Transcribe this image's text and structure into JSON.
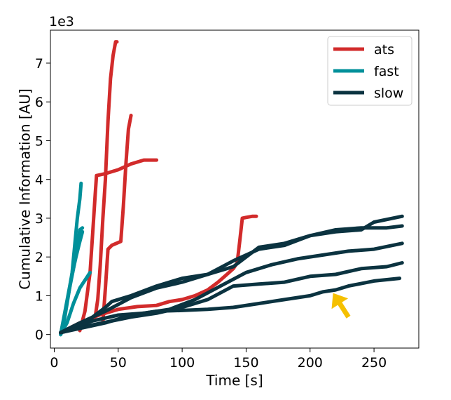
{
  "chart_data": {
    "type": "line",
    "xlabel": "Time [s]",
    "ylabel": "Cumulative Information [AU]",
    "y_multiplier": "1e3",
    "xlim": [
      -3,
      285
    ],
    "ylim": [
      -0.35,
      7.85
    ],
    "xticks": [
      0,
      50,
      100,
      150,
      200,
      250
    ],
    "yticks": [
      0,
      1,
      2,
      3,
      4,
      5,
      6,
      7
    ],
    "legend": {
      "placement": "top-right",
      "entries": [
        "ats",
        "fast",
        "slow"
      ]
    },
    "colors": {
      "ats": "#d22b2b",
      "fast": "#00909a",
      "slow": "#0b3340",
      "arrow": "#f5c000"
    },
    "series": [
      {
        "name": "ats",
        "group": "ats",
        "points": [
          [
            32,
            0.45
          ],
          [
            34,
            0.9
          ],
          [
            36,
            1.8
          ],
          [
            38,
            3.0
          ],
          [
            40,
            4.0
          ],
          [
            42,
            5.5
          ],
          [
            44,
            6.6
          ],
          [
            46,
            7.2
          ],
          [
            48,
            7.55
          ],
          [
            49,
            7.55
          ]
        ]
      },
      {
        "name": "ats",
        "group": "ats",
        "points": [
          [
            20,
            0.1
          ],
          [
            24,
            0.6
          ],
          [
            28,
            1.6
          ],
          [
            30,
            2.6
          ],
          [
            32,
            3.6
          ],
          [
            33,
            4.1
          ],
          [
            40,
            4.15
          ],
          [
            50,
            4.25
          ],
          [
            60,
            4.4
          ],
          [
            70,
            4.5
          ],
          [
            80,
            4.5
          ]
        ]
      },
      {
        "name": "ats",
        "group": "ats",
        "points": [
          [
            38,
            0.3
          ],
          [
            40,
            1.2
          ],
          [
            42,
            2.2
          ],
          [
            45,
            2.3
          ],
          [
            52,
            2.4
          ],
          [
            54,
            3.3
          ],
          [
            56,
            4.4
          ],
          [
            58,
            5.3
          ],
          [
            60,
            5.65
          ]
        ]
      },
      {
        "name": "ats",
        "group": "ats",
        "points": [
          [
            5,
            0.05
          ],
          [
            20,
            0.3
          ],
          [
            35,
            0.5
          ],
          [
            50,
            0.65
          ],
          [
            65,
            0.72
          ],
          [
            80,
            0.75
          ],
          [
            90,
            0.85
          ],
          [
            100,
            0.9
          ],
          [
            110,
            1.0
          ],
          [
            120,
            1.15
          ],
          [
            128,
            1.35
          ],
          [
            135,
            1.55
          ],
          [
            140,
            1.7
          ],
          [
            143,
            1.85
          ],
          [
            145,
            2.4
          ],
          [
            147,
            3.0
          ],
          [
            150,
            3.02
          ],
          [
            155,
            3.05
          ],
          [
            158,
            3.05
          ]
        ]
      },
      {
        "name": "fast",
        "group": "fast",
        "points": [
          [
            5,
            0.0
          ],
          [
            8,
            0.4
          ],
          [
            11,
            1.0
          ],
          [
            14,
            1.6
          ],
          [
            16,
            2.3
          ],
          [
            18,
            3.0
          ],
          [
            20,
            3.5
          ],
          [
            21,
            3.9
          ]
        ]
      },
      {
        "name": "fast",
        "group": "fast",
        "points": [
          [
            5,
            0.0
          ],
          [
            8,
            0.5
          ],
          [
            12,
            1.2
          ],
          [
            15,
            1.7
          ],
          [
            18,
            2.3
          ],
          [
            20,
            2.7
          ],
          [
            22,
            2.75
          ]
        ]
      },
      {
        "name": "fast",
        "group": "fast",
        "points": [
          [
            5,
            0.0
          ],
          [
            9,
            0.7
          ],
          [
            13,
            1.4
          ],
          [
            17,
            2.0
          ],
          [
            20,
            2.4
          ],
          [
            22,
            2.65
          ]
        ]
      },
      {
        "name": "fast",
        "group": "fast",
        "points": [
          [
            5,
            0.0
          ],
          [
            10,
            0.3
          ],
          [
            15,
            0.8
          ],
          [
            20,
            1.2
          ],
          [
            25,
            1.45
          ],
          [
            28,
            1.6
          ]
        ]
      },
      {
        "name": "slow",
        "group": "slow",
        "points": [
          [
            5,
            0.05
          ],
          [
            20,
            0.25
          ],
          [
            30,
            0.45
          ],
          [
            40,
            0.7
          ],
          [
            45,
            0.85
          ],
          [
            60,
            1.0
          ],
          [
            80,
            1.25
          ],
          [
            100,
            1.45
          ],
          [
            120,
            1.55
          ],
          [
            140,
            1.75
          ],
          [
            160,
            2.25
          ],
          [
            180,
            2.35
          ],
          [
            200,
            2.55
          ],
          [
            220,
            2.65
          ],
          [
            240,
            2.7
          ],
          [
            250,
            2.9
          ],
          [
            272,
            3.05
          ]
        ]
      },
      {
        "name": "slow",
        "group": "slow",
        "points": [
          [
            5,
            0.05
          ],
          [
            20,
            0.3
          ],
          [
            40,
            0.6
          ],
          [
            60,
            0.95
          ],
          [
            80,
            1.2
          ],
          [
            100,
            1.35
          ],
          [
            120,
            1.55
          ],
          [
            140,
            1.9
          ],
          [
            160,
            2.2
          ],
          [
            180,
            2.3
          ],
          [
            200,
            2.55
          ],
          [
            220,
            2.7
          ],
          [
            240,
            2.75
          ],
          [
            260,
            2.75
          ],
          [
            272,
            2.8
          ]
        ]
      },
      {
        "name": "slow",
        "group": "slow",
        "points": [
          [
            5,
            0.05
          ],
          [
            30,
            0.35
          ],
          [
            50,
            0.5
          ],
          [
            70,
            0.55
          ],
          [
            90,
            0.65
          ],
          [
            110,
            0.9
          ],
          [
            130,
            1.25
          ],
          [
            150,
            1.6
          ],
          [
            170,
            1.8
          ],
          [
            190,
            1.95
          ],
          [
            210,
            2.05
          ],
          [
            230,
            2.15
          ],
          [
            250,
            2.2
          ],
          [
            272,
            2.35
          ]
        ]
      },
      {
        "name": "slow",
        "group": "slow",
        "points": [
          [
            5,
            0.05
          ],
          [
            30,
            0.25
          ],
          [
            60,
            0.45
          ],
          [
            80,
            0.55
          ],
          [
            100,
            0.7
          ],
          [
            120,
            0.9
          ],
          [
            140,
            1.25
          ],
          [
            160,
            1.3
          ],
          [
            180,
            1.35
          ],
          [
            200,
            1.5
          ],
          [
            220,
            1.55
          ],
          [
            240,
            1.7
          ],
          [
            260,
            1.75
          ],
          [
            272,
            1.85
          ]
        ]
      },
      {
        "name": "slow",
        "group": "slow",
        "points": [
          [
            5,
            0.05
          ],
          [
            40,
            0.3
          ],
          [
            60,
            0.5
          ],
          [
            80,
            0.6
          ],
          [
            100,
            0.62
          ],
          [
            120,
            0.65
          ],
          [
            140,
            0.7
          ],
          [
            160,
            0.8
          ],
          [
            180,
            0.9
          ],
          [
            200,
            1.0
          ],
          [
            210,
            1.1
          ],
          [
            220,
            1.15
          ],
          [
            230,
            1.25
          ],
          [
            250,
            1.38
          ],
          [
            270,
            1.45
          ]
        ]
      }
    ],
    "annotations": [
      {
        "type": "arrow",
        "tip": [
          218,
          1.07
        ],
        "tail": [
          230,
          0.45
        ]
      }
    ]
  }
}
